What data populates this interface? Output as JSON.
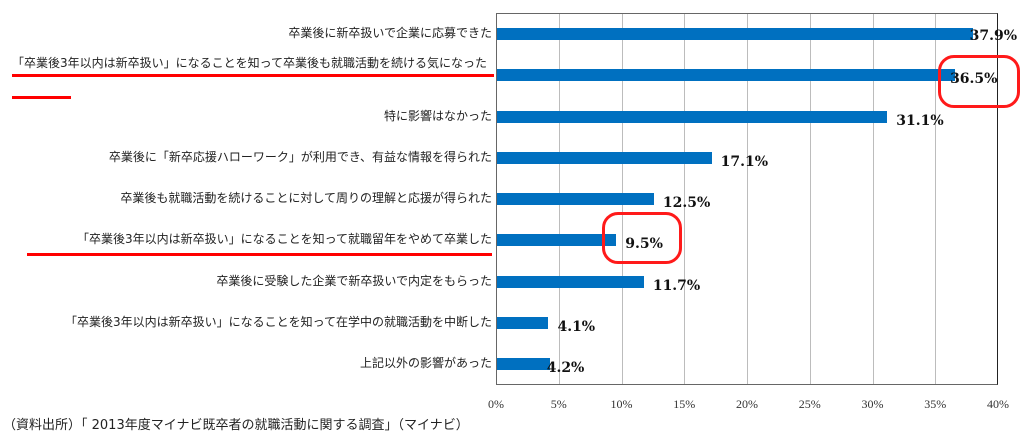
{
  "chart_data": {
    "type": "bar",
    "orientation": "horizontal",
    "title": "",
    "xlabel": "",
    "ylabel": "",
    "xlim": [
      0,
      40
    ],
    "x_ticks": [
      "0%",
      "5%",
      "10%",
      "15%",
      "20%",
      "25%",
      "30%",
      "35%",
      "40%"
    ],
    "grid": true,
    "legend": null,
    "bar_color": "#0070C0",
    "categories": [
      "卒業後に新卒扱いで企業に応募できた",
      "「卒業後3年以内は新卒扱い」になることを知って卒業後も就職活動を続ける気になった",
      "特に影響はなかった",
      "卒業後に「新卒応援ハローワーク」が利用でき、有益な情報を得られた",
      "卒業後も就職活動を続けることに対して周りの理解と応援が得られた",
      "「卒業後3年以内は新卒扱い」になることを知って就職留年をやめて卒業した",
      "卒業後に受験した企業で新卒扱いで内定をもらった",
      "「卒業後3年以内は新卒扱い」になることを知って在学中の就職活動を中断した",
      "上記以外の影響があった"
    ],
    "values": [
      37.9,
      36.5,
      31.1,
      17.1,
      12.5,
      9.5,
      11.7,
      4.1,
      4.2
    ],
    "value_labels": [
      "37.9%",
      "36.5%",
      "31.1%",
      "17.1%",
      "12.5%",
      "9.5%",
      "11.7%",
      "4.1%",
      "4.2%"
    ],
    "annotations": [
      {
        "type": "red-underline",
        "target": "category",
        "index": 1
      },
      {
        "type": "red-circle",
        "target": "value_label",
        "index": 1
      },
      {
        "type": "red-underline",
        "target": "category",
        "index": 5
      },
      {
        "type": "red-circle",
        "target": "value_label",
        "index": 5
      }
    ],
    "source": "（資料出所）「 2013年度マイナビ既卒者の就職活動に関する調査」（マイナビ）"
  },
  "annotation_color": "#FF0000"
}
